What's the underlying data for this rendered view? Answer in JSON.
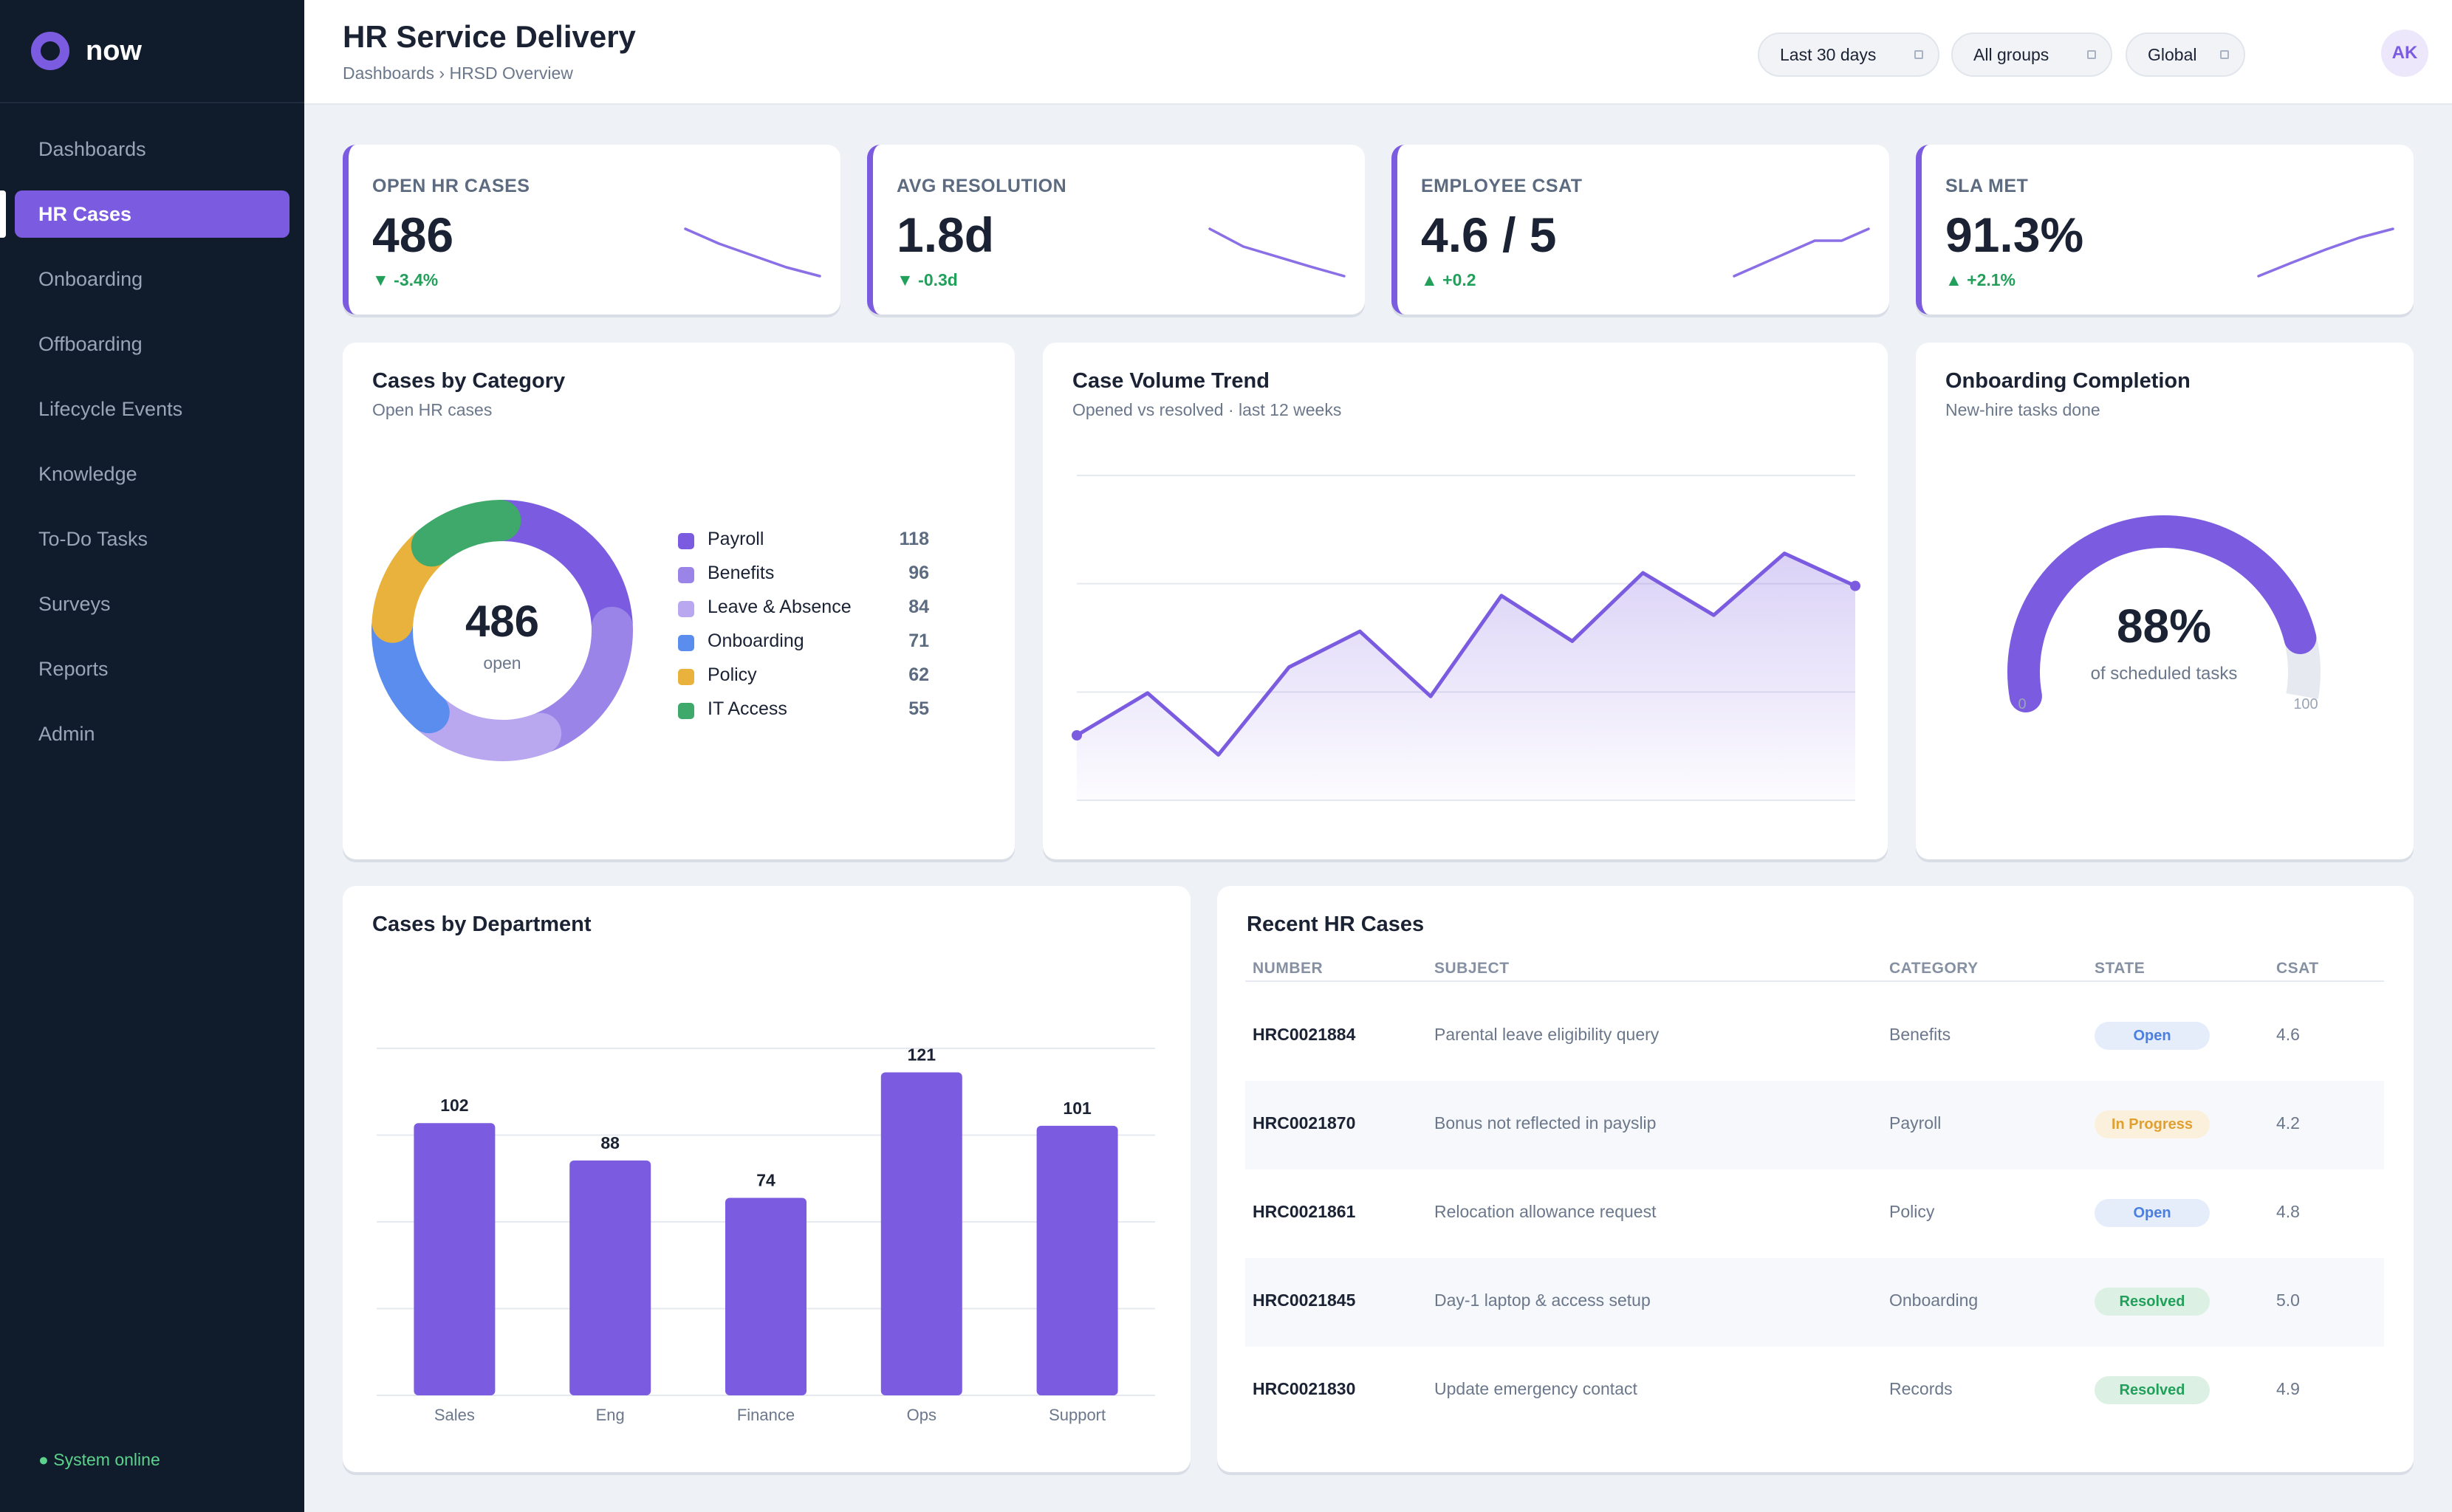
{
  "brand": {
    "name": "now"
  },
  "sidebar": {
    "items": [
      {
        "label": "Dashboards",
        "active": false
      },
      {
        "label": "HR Cases",
        "active": true
      },
      {
        "label": "Onboarding",
        "active": false
      },
      {
        "label": "Offboarding",
        "active": false
      },
      {
        "label": "Lifecycle Events",
        "active": false
      },
      {
        "label": "Knowledge",
        "active": false
      },
      {
        "label": "To-Do Tasks",
        "active": false
      },
      {
        "label": "Surveys",
        "active": false
      },
      {
        "label": "Reports",
        "active": false
      },
      {
        "label": "Admin",
        "active": false
      }
    ],
    "status": "● System online"
  },
  "header": {
    "title": "HR Service Delivery",
    "breadcrumb": "Dashboards › HRSD Overview",
    "filters": [
      "Last 30 days",
      "All groups",
      "Global"
    ],
    "avatar": "AK"
  },
  "kpis": [
    {
      "label": "OPEN HR CASES",
      "value": "486",
      "delta": "▼ -3.4%",
      "trend": [
        10,
        7.5,
        5.5,
        3.5,
        2
      ]
    },
    {
      "label": "AVG RESOLUTION",
      "value": "1.8d",
      "delta": "▼ -0.3d",
      "trend": [
        10,
        7,
        5.3,
        3.6,
        2
      ]
    },
    {
      "label": "EMPLOYEE CSAT",
      "value": "4.6 / 5",
      "delta": "▲ +0.2",
      "trend": [
        2,
        4,
        6,
        8,
        8,
        10
      ]
    },
    {
      "label": "SLA MET",
      "value": "91.3%",
      "delta": "▲ +2.1%",
      "trend": [
        2,
        4.3,
        6.5,
        8.5,
        10
      ]
    }
  ],
  "category": {
    "title": "Cases by Category",
    "subtitle": "Open HR cases",
    "total": "486",
    "total_label": "open",
    "colors": [
      "#7b5ce0",
      "#9b84e8",
      "#b9a8f0",
      "#5b8def",
      "#e9b23c",
      "#3fa96b"
    ]
  },
  "volume": {
    "title": "Case Volume Trend",
    "subtitle": "Opened vs resolved · last 12 weeks"
  },
  "onboarding": {
    "title": "Onboarding Completion",
    "subtitle": "New-hire tasks done",
    "value_label": "88%",
    "caption": "of scheduled tasks",
    "min": "0",
    "max": "100"
  },
  "department": {
    "title": "Cases by Department"
  },
  "recent": {
    "title": "Recent HR Cases",
    "columns": [
      "NUMBER",
      "SUBJECT",
      "CATEGORY",
      "STATE",
      "CSAT"
    ],
    "rows": [
      {
        "number": "HRC0021884",
        "subject": "Parental leave eligibility query",
        "category": "Benefits",
        "state": "Open",
        "csat": "4.6"
      },
      {
        "number": "HRC0021870",
        "subject": "Bonus not reflected in payslip",
        "category": "Payroll",
        "state": "In Progress",
        "csat": "4.2"
      },
      {
        "number": "HRC0021861",
        "subject": "Relocation allowance request",
        "category": "Policy",
        "state": "Open",
        "csat": "4.8"
      },
      {
        "number": "HRC0021845",
        "subject": "Day-1 laptop & access setup",
        "category": "Onboarding",
        "state": "Resolved",
        "csat": "5.0"
      },
      {
        "number": "HRC0021830",
        "subject": "Update emergency contact",
        "category": "Records",
        "state": "Resolved",
        "csat": "4.9"
      }
    ],
    "state_colors": {
      "Open": {
        "bg": "#e5edfb",
        "fg": "#4a7fe0"
      },
      "In Progress": {
        "bg": "#fbf0dc",
        "fg": "#e0a030"
      },
      "Resolved": {
        "bg": "#dcf1e4",
        "fg": "#22a05b"
      }
    }
  },
  "chart_data": [
    {
      "type": "pie",
      "title": "Cases by Category",
      "subtitle": "Open HR cases",
      "categories": [
        "Payroll",
        "Benefits",
        "Leave & Absence",
        "Onboarding",
        "Policy",
        "IT Access"
      ],
      "values": [
        118,
        96,
        84,
        71,
        62,
        55
      ]
    },
    {
      "type": "area",
      "title": "Case Volume Trend",
      "subtitle": "Opened vs resolved · last 12 weeks",
      "x": [
        1,
        2,
        3,
        4,
        5,
        6,
        7,
        8,
        9,
        10,
        11,
        12
      ],
      "values": [
        20,
        33,
        14,
        41,
        52,
        32,
        63,
        49,
        70,
        57,
        76,
        66
      ],
      "ylim": [
        0,
        100
      ],
      "grid": true
    },
    {
      "type": "bar",
      "title": "Cases by Department",
      "categories": [
        "Sales",
        "Eng",
        "Finance",
        "Ops",
        "Support"
      ],
      "values": [
        102,
        88,
        74,
        121,
        101
      ],
      "ylim": [
        0,
        130
      ],
      "grid": true
    },
    {
      "type": "gauge",
      "title": "Onboarding Completion",
      "value": 88,
      "ylim": [
        0,
        100
      ]
    }
  ]
}
